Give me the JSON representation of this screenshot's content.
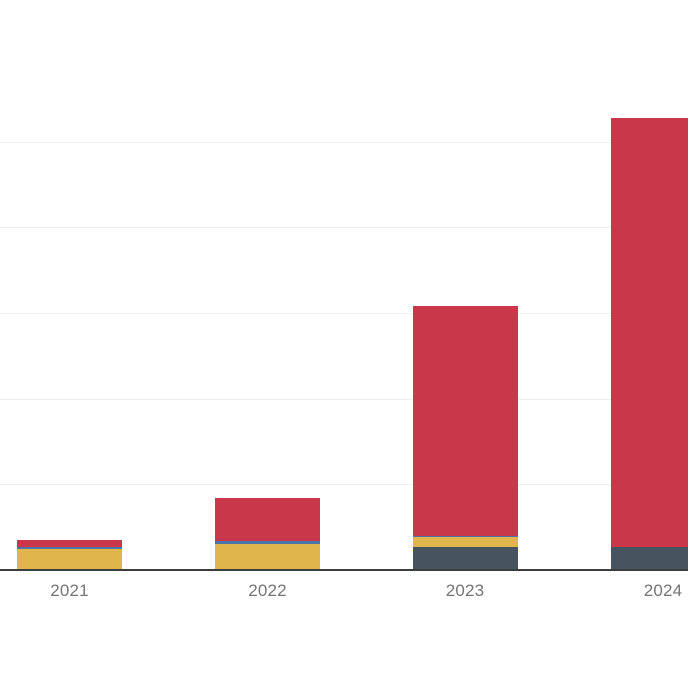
{
  "chart_data": {
    "type": "bar",
    "stacked": true,
    "title": "",
    "xlabel": "",
    "ylabel": "",
    "categories": [
      "2021",
      "2022",
      "2023",
      "2024"
    ],
    "series": [
      {
        "name": "dark-slate-segment",
        "color": "#45545e",
        "values": [
          0,
          0,
          27,
          27
        ]
      },
      {
        "name": "gold-segment",
        "color": "#dfb54c",
        "values": [
          25,
          30,
          12,
          0
        ]
      },
      {
        "name": "blue-segment",
        "color": "#4a74a8",
        "values": [
          2,
          4,
          1,
          0
        ]
      },
      {
        "name": "red-segment",
        "color": "#c9384a",
        "values": [
          8,
          50,
          268,
          501
        ]
      }
    ],
    "ylim": [
      0,
      665
    ],
    "gridline_values": [
      100,
      200,
      300,
      400,
      500
    ],
    "grid_on": true,
    "legend_position": "none",
    "axis_color": "#3d3d3d",
    "gridline_color": "#eeeeee",
    "tick_label_color": "#757575",
    "note_right_bar_clipped": true
  }
}
